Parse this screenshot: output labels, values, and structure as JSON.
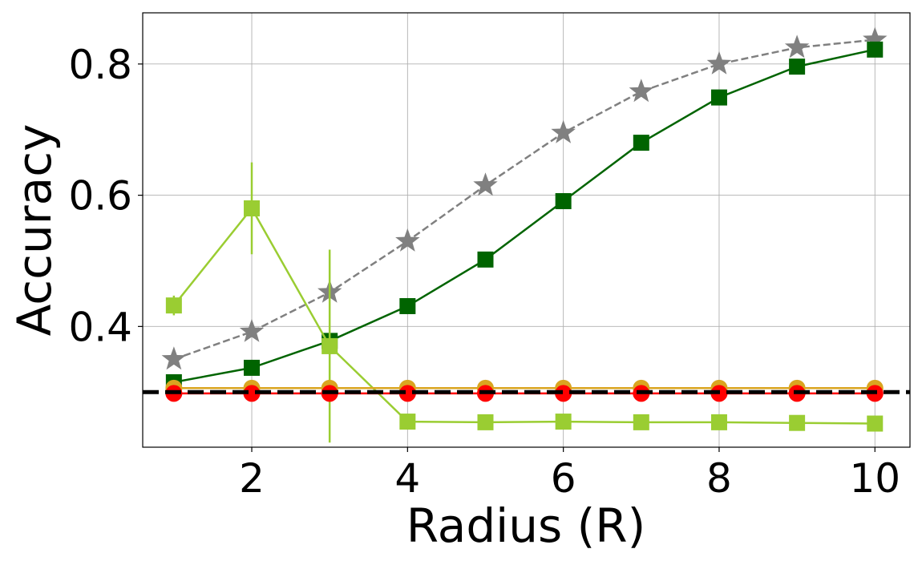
{
  "chart_data": {
    "type": "line",
    "title": "",
    "xlabel": "Radius (R)",
    "ylabel": "Accuracy",
    "xlim": [
      0.6,
      10.45
    ],
    "ylim": [
      0.216,
      0.878
    ],
    "xticks": [
      2,
      4,
      6,
      8,
      10
    ],
    "xtick_labels": [
      "2",
      "4",
      "6",
      "8",
      "10"
    ],
    "yticks": [
      0.4,
      0.6,
      0.8
    ],
    "ytick_labels": [
      "0.4",
      "0.6",
      "0.8"
    ],
    "grid": true,
    "legend": "none",
    "baseline": {
      "y": 0.3,
      "color": "#000000",
      "style": "dashed"
    },
    "series": [
      {
        "color": "#808080",
        "marker": "star",
        "line_style": "dashed",
        "x": [
          1,
          2,
          3,
          4,
          5,
          6,
          7,
          8,
          9,
          10
        ],
        "y": [
          0.35,
          0.392,
          0.452,
          0.53,
          0.615,
          0.695,
          0.758,
          0.8,
          0.825,
          0.837
        ]
      },
      {
        "color": "#006400",
        "marker": "square",
        "line_style": "solid",
        "x": [
          1,
          2,
          3,
          4,
          5,
          6,
          7,
          8,
          9,
          10
        ],
        "y": [
          0.315,
          0.337,
          0.378,
          0.431,
          0.502,
          0.591,
          0.68,
          0.749,
          0.796,
          0.822
        ]
      },
      {
        "color": "#9ACD32",
        "marker": "square",
        "line_style": "solid",
        "x": [
          1,
          2,
          3,
          4,
          5,
          6,
          7,
          8,
          9,
          10
        ],
        "y": [
          0.432,
          0.58,
          0.37,
          0.255,
          0.254,
          0.255,
          0.254,
          0.254,
          0.253,
          0.252
        ],
        "error": [
          0.015,
          0.07,
          0.147,
          0,
          0,
          0,
          0,
          0,
          0,
          0
        ]
      },
      {
        "color": "#DAA520",
        "marker": "circle",
        "line_style": "solid",
        "x": [
          1,
          2,
          3,
          4,
          5,
          6,
          7,
          8,
          9,
          10
        ],
        "y": [
          0.306,
          0.306,
          0.306,
          0.306,
          0.306,
          0.306,
          0.306,
          0.306,
          0.306,
          0.306
        ]
      },
      {
        "color": "#FF0000",
        "marker": "circle",
        "line_style": "solid",
        "x": [
          1,
          2,
          3,
          4,
          5,
          6,
          7,
          8,
          9,
          10
        ],
        "y": [
          0.298,
          0.298,
          0.298,
          0.298,
          0.298,
          0.298,
          0.298,
          0.298,
          0.298,
          0.298
        ]
      }
    ]
  }
}
